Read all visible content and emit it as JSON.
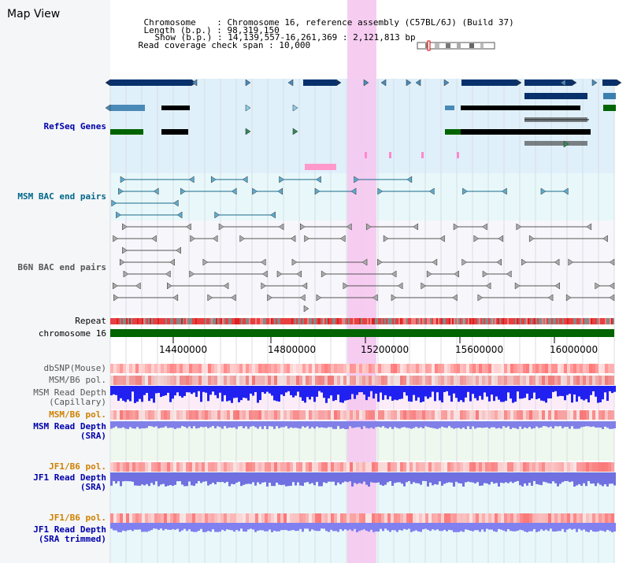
{
  "header": {
    "title": "Map View",
    "chromosome_key": "Chromosome",
    "chromosome_value": "Chromosome 16, reference assembly (C57BL/6J) (Build 37)",
    "length_key": "Length (b.p.)",
    "length_value": "98,319,150",
    "show_key": "Show (b.p.)",
    "show_value": "14,139,557-16,261,369 : 2,121,813 bp",
    "coverage_key": "Read coverage check span",
    "coverage_value": "10,000"
  },
  "tracks": {
    "refseq": "RefSeq Genes",
    "msm_bac": "MSM BAC end pairs",
    "b6n_bac": "B6N BAC end pairs",
    "repeat": "Repeat",
    "chromosome": "chromosome 16",
    "dbsnp": "dbSNP(Mouse)",
    "msm_b6_pol_1": "MSM/B6 pol.",
    "msm_read_depth_cap_1": "MSM Read Depth",
    "msm_read_depth_cap_2": "(Capillary)",
    "msm_b6_pol_2": "MSM/B6 pol.",
    "msm_read_depth_sra_1": "MSM Read Depth",
    "msm_read_depth_sra_2": "(SRA)",
    "jf1_b6_pol_1": "JF1/B6 pol.",
    "jf1_read_depth_1": "JF1 Read Depth",
    "jf1_read_depth_2": "(SRA)",
    "jf1_b6_pol_2": "JF1/B6 pol.",
    "jf1_read_depth_trim_1": "JF1 Read Depth",
    "jf1_read_depth_trim_2": "(SRA trimmed)"
  },
  "axis": {
    "ticks": [
      "14400000",
      "14800000",
      "15200000",
      "15600000",
      "16000000"
    ],
    "range": [
      14139557,
      16261369
    ]
  },
  "colors": {
    "label_blue": "#0000aa",
    "label_teal": "#006688",
    "label_orange": "#d08000",
    "label_gray": "#555555",
    "refseq_bg": "#dff0fa",
    "highlight": "#f5c8f0",
    "chromosome_bar": "#006400"
  },
  "icons": {
    "ideogram": "chromosome-ideogram-icon"
  }
}
